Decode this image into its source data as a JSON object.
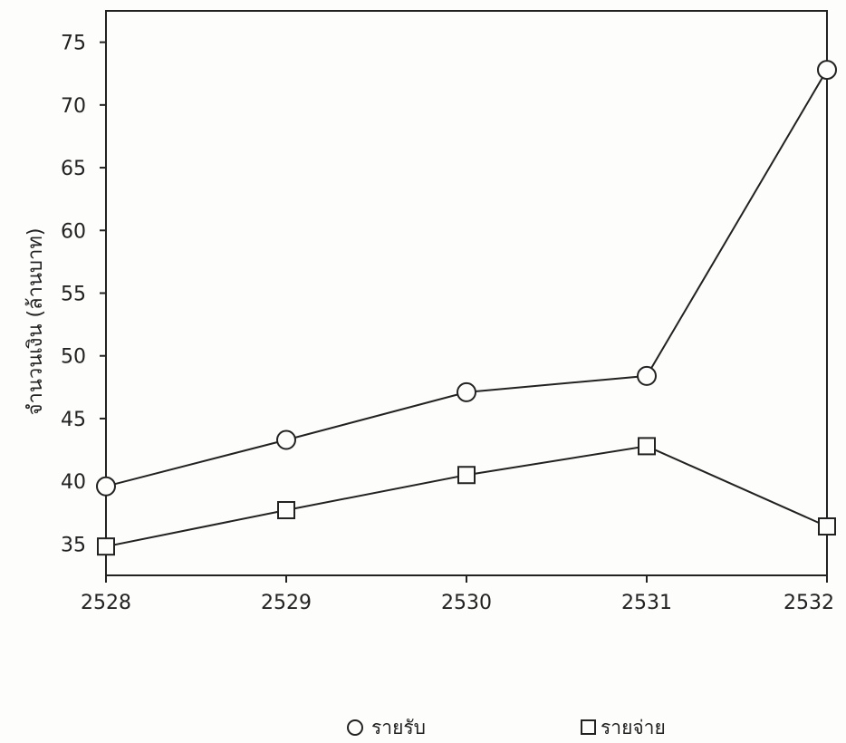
{
  "chart_data": {
    "type": "line",
    "title": "",
    "xlabel": "",
    "ylabel": "จำนวนเงิน (ล้านบาท)",
    "categories": [
      "2528",
      "2529",
      "2530",
      "2531",
      "2532"
    ],
    "ylim": [
      32.5,
      77.5
    ],
    "yticks": [
      35,
      40,
      45,
      50,
      55,
      60,
      65,
      70,
      75
    ],
    "grid": false,
    "legend_position": "bottom",
    "series": [
      {
        "name": "รายรับ",
        "marker": "circle",
        "values": [
          39.6,
          43.3,
          47.1,
          48.4,
          72.8
        ]
      },
      {
        "name": "รายจ่าย",
        "marker": "square",
        "values": [
          34.8,
          37.7,
          40.5,
          42.8,
          36.4
        ]
      }
    ]
  },
  "colors": {
    "line": "#222222",
    "background": "#fdfdfc"
  }
}
